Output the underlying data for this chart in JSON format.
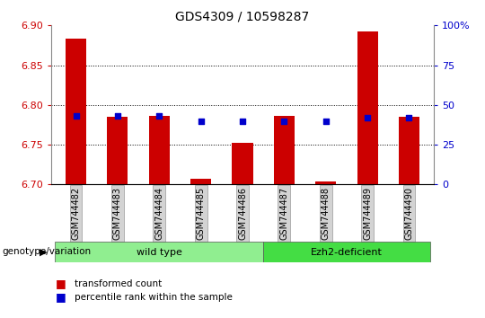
{
  "title": "GDS4309 / 10598287",
  "samples": [
    "GSM744482",
    "GSM744483",
    "GSM744484",
    "GSM744485",
    "GSM744486",
    "GSM744487",
    "GSM744488",
    "GSM744489",
    "GSM744490"
  ],
  "red_values": [
    6.883,
    6.785,
    6.786,
    6.707,
    6.752,
    6.786,
    6.704,
    6.893,
    6.785
  ],
  "blue_pct": [
    43,
    43,
    43,
    40,
    40,
    40,
    40,
    42,
    42
  ],
  "y_min": 6.7,
  "y_max": 6.9,
  "y_ticks": [
    6.7,
    6.75,
    6.8,
    6.85,
    6.9
  ],
  "right_y_ticks": [
    0,
    25,
    50,
    75,
    100
  ],
  "right_y_tick_labels": [
    "0",
    "25",
    "50",
    "75",
    "100%"
  ],
  "bar_color": "#cc0000",
  "blue_color": "#0000cc",
  "wild_type_color": "#90ee90",
  "ezh2_color": "#44dd44",
  "wild_type_label": "wild type",
  "ezh2_label": "Ezh2-deficient",
  "genotype_label": "genotype/variation",
  "legend_red": "transformed count",
  "legend_blue": "percentile rank within the sample",
  "bar_width": 0.5,
  "base_value": 6.7,
  "tick_label_color_left": "#cc0000",
  "tick_label_color_right": "#0000cc",
  "n_wild": 5,
  "n_ezh2": 4
}
